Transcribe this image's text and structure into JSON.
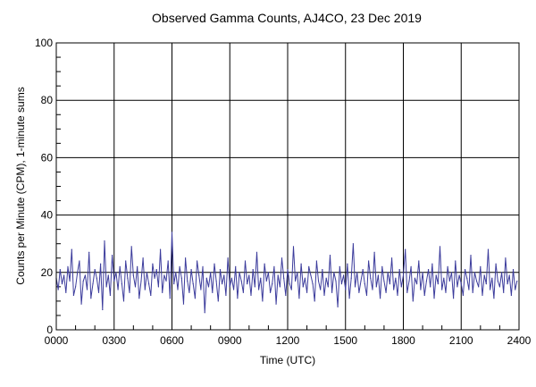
{
  "chart_data": {
    "type": "line",
    "title": "Observed Gamma Counts, AJ4CO, 23 Dec 2019",
    "xlabel": "Time (UTC)",
    "ylabel": "Counts per Minute (CPM), 1-minute sums",
    "xlim": [
      0,
      24
    ],
    "ylim": [
      0,
      100
    ],
    "x_tick_labels": [
      "0000",
      "0300",
      "0600",
      "0900",
      "1200",
      "1500",
      "1800",
      "2100",
      "2400"
    ],
    "y_tick_labels": [
      "0",
      "20",
      "40",
      "60",
      "80",
      "100"
    ],
    "grid": true,
    "series_color": "#3c3c9c",
    "series": [
      {
        "name": "CPM",
        "x_step_hours": 0.1,
        "values": [
          18,
          14,
          21,
          16,
          19,
          13,
          22,
          17,
          28,
          12,
          15,
          20,
          24,
          9,
          17,
          19,
          14,
          27,
          11,
          16,
          21,
          18,
          13,
          23,
          7,
          31,
          15,
          19,
          12,
          26,
          17,
          20,
          14,
          22,
          16,
          10,
          24,
          18,
          13,
          29,
          19,
          15,
          22,
          11,
          17,
          25,
          14,
          20,
          16,
          12,
          23,
          18,
          21,
          15,
          28,
          13,
          19,
          17,
          24,
          11,
          34,
          16,
          20,
          14,
          22,
          18,
          9,
          25,
          17,
          13,
          21,
          16,
          11,
          24,
          19,
          14,
          22,
          6,
          18,
          15,
          20,
          13,
          23,
          17,
          10,
          21,
          16,
          19,
          12,
          25,
          15,
          18,
          14,
          22,
          11,
          20,
          17,
          13,
          24,
          16,
          19,
          12,
          21,
          15,
          27,
          14,
          18,
          10,
          23,
          17,
          20,
          13,
          16,
          22,
          9,
          19,
          15,
          25,
          18,
          12,
          21,
          16,
          14,
          29,
          17,
          20,
          11,
          23,
          15,
          18,
          13,
          22,
          19,
          16,
          10,
          24,
          17,
          14,
          21,
          12,
          18,
          15,
          26,
          13,
          20,
          17,
          8,
          22,
          16,
          19,
          14,
          23,
          11,
          18,
          30,
          15,
          20,
          13,
          17,
          21,
          16,
          12,
          24,
          18,
          14,
          27,
          15,
          19,
          11,
          22,
          17,
          13,
          20,
          16,
          25,
          14,
          18,
          12,
          21,
          15,
          19,
          28,
          13,
          17,
          22,
          10,
          18,
          16,
          24,
          14,
          20,
          12,
          17,
          21,
          15,
          23,
          11,
          19,
          16,
          29,
          14,
          18,
          13,
          22,
          17,
          20,
          11,
          24,
          15,
          19,
          16,
          12,
          21,
          18,
          14,
          26,
          13,
          20,
          17,
          15,
          22,
          12,
          19,
          16,
          28,
          14,
          18,
          11,
          23,
          17,
          15,
          20,
          13,
          25,
          16,
          19,
          12,
          21,
          14,
          17
        ]
      }
    ]
  }
}
